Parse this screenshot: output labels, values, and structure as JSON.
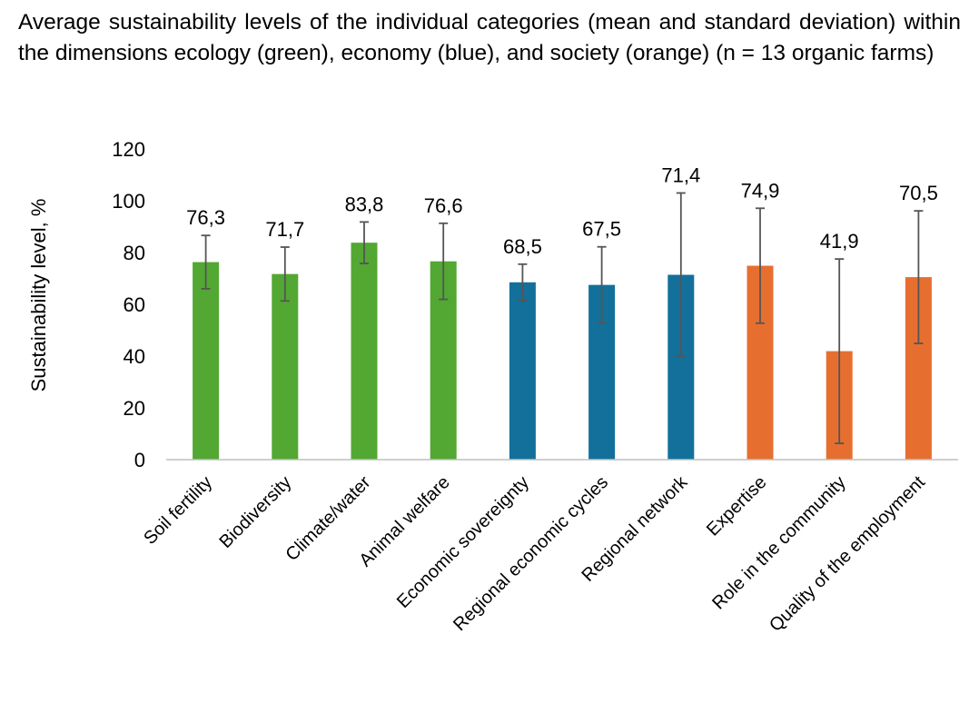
{
  "caption": "Average sustainability levels of the individual categories (mean and standard deviation) within the dimensions ecology (green), economy (blue), and society (orange) (n = 13 organic farms)",
  "colors": {
    "ecology": "#52a832",
    "economy": "#13709b",
    "society": "#e66f30",
    "error_bar": "#555555",
    "axis": "#bfbfbf"
  },
  "chart_data": {
    "type": "bar",
    "title": "",
    "xlabel": "",
    "ylabel": "Sustainability level, %",
    "ylim": [
      0,
      120
    ],
    "yticks": [
      0,
      20,
      40,
      60,
      80,
      100,
      120
    ],
    "grid": false,
    "legend": "none",
    "categories": [
      "Soil fertility",
      "Biodiversity",
      "Climate/water",
      "Animal welfare",
      "Economic sovereignty",
      "Regional economic cycles",
      "Regional network",
      "Expertise",
      "Role in the community",
      "Quality of the employment"
    ],
    "values": [
      76.3,
      71.7,
      83.8,
      76.6,
      68.5,
      67.5,
      71.4,
      74.9,
      41.9,
      70.5
    ],
    "value_labels": [
      "76,3",
      "71,7",
      "83,8",
      "76,6",
      "68,5",
      "67,5",
      "71,4",
      "74,9",
      "41,9",
      "70,5"
    ],
    "std_dev": [
      10.3,
      10.4,
      8.0,
      14.7,
      7.0,
      14.7,
      31.6,
      22.2,
      35.6,
      25.6
    ],
    "dimension": [
      "ecology",
      "ecology",
      "ecology",
      "ecology",
      "economy",
      "economy",
      "economy",
      "society",
      "society",
      "society"
    ]
  }
}
